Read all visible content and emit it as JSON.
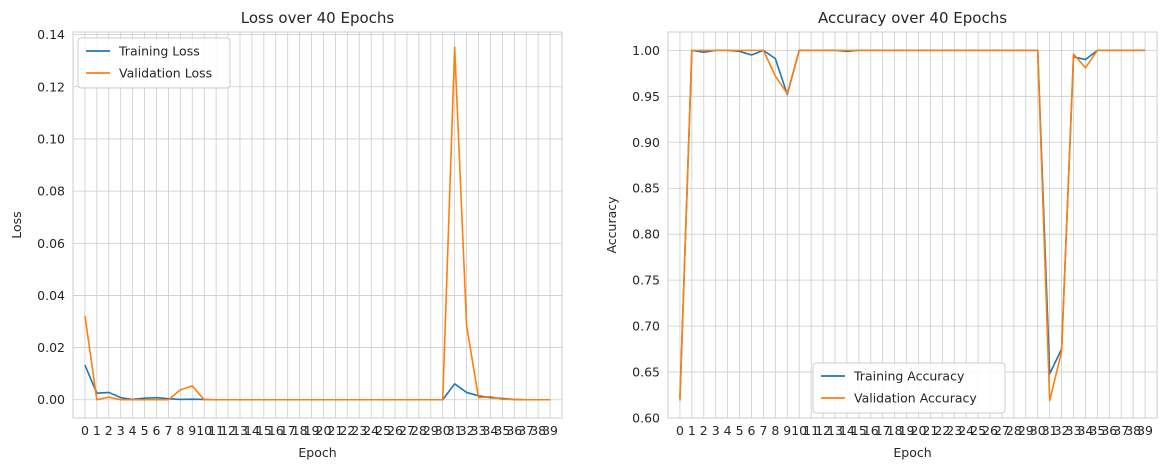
{
  "chart_data": [
    {
      "type": "line",
      "title": "Loss over 40 Epochs",
      "xlabel": "Epoch",
      "ylabel": "Loss",
      "x": [
        0,
        1,
        2,
        3,
        4,
        5,
        6,
        7,
        8,
        9,
        10,
        11,
        12,
        13,
        14,
        15,
        16,
        17,
        18,
        19,
        20,
        21,
        22,
        23,
        24,
        25,
        26,
        27,
        28,
        29,
        30,
        31,
        32,
        33,
        34,
        35,
        36,
        37,
        38,
        39
      ],
      "xticklabels": [
        "0",
        "1",
        "2",
        "3",
        "4",
        "5",
        "6",
        "7",
        "8",
        "9",
        "10",
        "11",
        "12",
        "13",
        "14",
        "15",
        "16",
        "17",
        "18",
        "19",
        "20",
        "21",
        "22",
        "23",
        "24",
        "25",
        "26",
        "27",
        "28",
        "29",
        "30",
        "31",
        "32",
        "33",
        "34",
        "35",
        "36",
        "37",
        "38",
        "39"
      ],
      "ylim": [
        -0.007,
        0.141
      ],
      "yticks": [
        0.0,
        0.02,
        0.04,
        0.06,
        0.08,
        0.1,
        0.12,
        0.14
      ],
      "yticklabels": [
        "0.00",
        "0.02",
        "0.04",
        "0.06",
        "0.08",
        "0.10",
        "0.12",
        "0.14"
      ],
      "grid": true,
      "legend_position": "upper-left",
      "series": [
        {
          "name": "Training Loss",
          "color": "#1f77b4",
          "values": [
            0.0133,
            0.0025,
            0.0028,
            0.0008,
            0.0001,
            0.0006,
            0.0008,
            0.0004,
            0.0001,
            0.0002,
            0.0001,
            0.0,
            0.0,
            0.0,
            0.0,
            0.0,
            0.0,
            0.0,
            0.0,
            0.0,
            0.0,
            0.0,
            0.0,
            0.0,
            0.0,
            0.0,
            0.0,
            0.0,
            0.0,
            0.0,
            0.0,
            0.0061,
            0.0028,
            0.0015,
            0.0008,
            0.0005,
            0.0001,
            0.0,
            0.0,
            0.0
          ]
        },
        {
          "name": "Validation Loss",
          "color": "#ff7f0e",
          "values": [
            0.0322,
            0.0,
            0.001,
            0.0,
            0.0,
            0.0,
            0.0,
            0.0,
            0.0038,
            0.0053,
            0.0,
            0.0,
            0.0,
            0.0,
            0.0,
            0.0,
            0.0,
            0.0,
            0.0,
            0.0,
            0.0,
            0.0,
            0.0,
            0.0,
            0.0,
            0.0,
            0.0,
            0.0,
            0.0,
            0.0,
            0.0,
            0.1352,
            0.0285,
            0.0008,
            0.0012,
            0.0002,
            0.0001,
            0.0,
            0.0,
            0.0
          ]
        }
      ]
    },
    {
      "type": "line",
      "title": "Accuracy over 40 Epochs",
      "xlabel": "Epoch",
      "ylabel": "Accuracy",
      "x": [
        0,
        1,
        2,
        3,
        4,
        5,
        6,
        7,
        8,
        9,
        10,
        11,
        12,
        13,
        14,
        15,
        16,
        17,
        18,
        19,
        20,
        21,
        22,
        23,
        24,
        25,
        26,
        27,
        28,
        29,
        30,
        31,
        32,
        33,
        34,
        35,
        36,
        37,
        38,
        39
      ],
      "xticklabels": [
        "0",
        "1",
        "2",
        "3",
        "4",
        "5",
        "6",
        "7",
        "8",
        "9",
        "10",
        "11",
        "12",
        "13",
        "14",
        "15",
        "16",
        "17",
        "18",
        "19",
        "20",
        "21",
        "22",
        "23",
        "24",
        "25",
        "26",
        "27",
        "28",
        "29",
        "30",
        "31",
        "32",
        "33",
        "34",
        "35",
        "36",
        "37",
        "38",
        "39"
      ],
      "ylim": [
        0.6,
        1.02
      ],
      "yticks": [
        0.6,
        0.65,
        0.7,
        0.75,
        0.8,
        0.85,
        0.9,
        0.95,
        1.0
      ],
      "yticklabels": [
        "0.60",
        "0.65",
        "0.70",
        "0.75",
        "0.80",
        "0.85",
        "0.90",
        "0.95",
        "1.00"
      ],
      "grid": true,
      "legend_position": "lower-center",
      "series": [
        {
          "name": "Training Accuracy",
          "color": "#1f77b4",
          "values": [
            0.622,
            1.0,
            0.998,
            1.0,
            1.0,
            0.999,
            0.995,
            1.0,
            0.991,
            0.952,
            1.0,
            1.0,
            1.0,
            1.0,
            0.999,
            1.0,
            1.0,
            1.0,
            1.0,
            1.0,
            1.0,
            1.0,
            1.0,
            1.0,
            1.0,
            1.0,
            1.0,
            1.0,
            1.0,
            1.0,
            1.0,
            0.648,
            0.675,
            0.993,
            0.99,
            1.0,
            1.0,
            1.0,
            1.0,
            1.0
          ]
        },
        {
          "name": "Validation Accuracy",
          "color": "#ff7f0e",
          "values": [
            0.619,
            1.0,
            1.0,
            1.0,
            1.0,
            1.0,
            1.0,
            1.0,
            0.972,
            0.953,
            1.0,
            1.0,
            1.0,
            1.0,
            1.0,
            1.0,
            1.0,
            1.0,
            1.0,
            1.0,
            1.0,
            1.0,
            1.0,
            1.0,
            1.0,
            1.0,
            1.0,
            1.0,
            1.0,
            1.0,
            1.0,
            0.619,
            0.672,
            0.996,
            0.981,
            1.0,
            1.0,
            1.0,
            1.0,
            1.0
          ]
        }
      ]
    }
  ]
}
